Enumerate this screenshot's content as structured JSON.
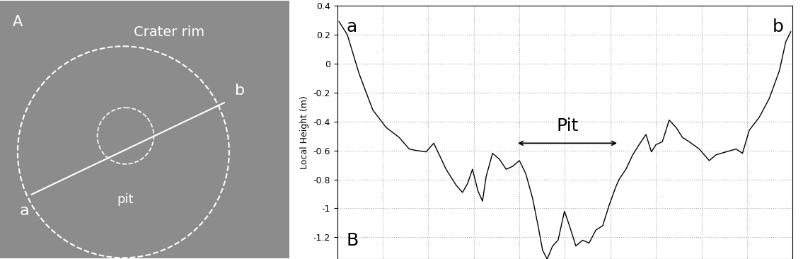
{
  "panel_a": {
    "label": "A",
    "texts": {
      "crater_rim": "Crater rim",
      "pit": "pit",
      "start": "a",
      "end": "b"
    }
  },
  "chart_data": {
    "type": "line",
    "label": "B",
    "y_label": "Local Height (m)",
    "start_label": "a",
    "end_label": "b",
    "annotations": [
      {
        "text": "Pit",
        "x_range": [
          39.2,
          61.9
        ],
        "y": -0.55
      }
    ],
    "x": [
      0.4,
      2.2,
      4.8,
      7.8,
      10.7,
      13.6,
      15.8,
      17.3,
      19.5,
      21.2,
      22.4,
      23.9,
      26.1,
      27.5,
      28.6,
      29.7,
      30.9,
      31.9,
      32.7,
      34.1,
      35.6,
      37.1,
      38.5,
      40.0,
      41.4,
      42.9,
      44.1,
      45.1,
      46.1,
      47.3,
      48.5,
      49.9,
      51.0,
      52.4,
      53.9,
      55.3,
      56.8,
      58.3,
      59.7,
      61.2,
      61.9,
      63.4,
      64.9,
      66.3,
      67.8,
      69.0,
      70.0,
      71.4,
      72.9,
      74.4,
      75.8,
      77.3,
      79.5,
      81.7,
      83.2,
      85.4,
      87.6,
      89.0,
      90.5,
      92.7,
      94.9,
      97.1,
      98.5,
      99.6
    ],
    "values": [
      0.29,
      0.2,
      -0.07,
      -0.32,
      -0.44,
      -0.51,
      -0.59,
      -0.6,
      -0.61,
      -0.55,
      -0.63,
      -0.73,
      -0.84,
      -0.89,
      -0.83,
      -0.73,
      -0.88,
      -0.95,
      -0.78,
      -0.62,
      -0.66,
      -0.73,
      -0.71,
      -0.67,
      -0.76,
      -0.93,
      -1.12,
      -1.29,
      -1.35,
      -1.26,
      -1.22,
      -1.02,
      -1.12,
      -1.26,
      -1.22,
      -1.24,
      -1.15,
      -1.12,
      -0.98,
      -0.85,
      -0.8,
      -0.73,
      -0.63,
      -0.56,
      -0.49,
      -0.61,
      -0.56,
      -0.54,
      -0.39,
      -0.44,
      -0.51,
      -0.54,
      -0.59,
      -0.67,
      -0.63,
      -0.61,
      -0.59,
      -0.62,
      -0.46,
      -0.37,
      -0.24,
      -0.05,
      0.15,
      0.22
    ],
    "color": "#000000",
    "xlim": [
      0,
      100
    ],
    "xticks": [
      0,
      10,
      20,
      30,
      40,
      50,
      60,
      70,
      80,
      90,
      100
    ],
    "ylim": [
      -1.35,
      0.4
    ],
    "yticks": [
      -1.2,
      -1,
      -0.8,
      -0.6,
      -0.4,
      -0.2,
      0,
      0.2,
      0.4
    ],
    "grid": true,
    "tick_labels": "y"
  }
}
